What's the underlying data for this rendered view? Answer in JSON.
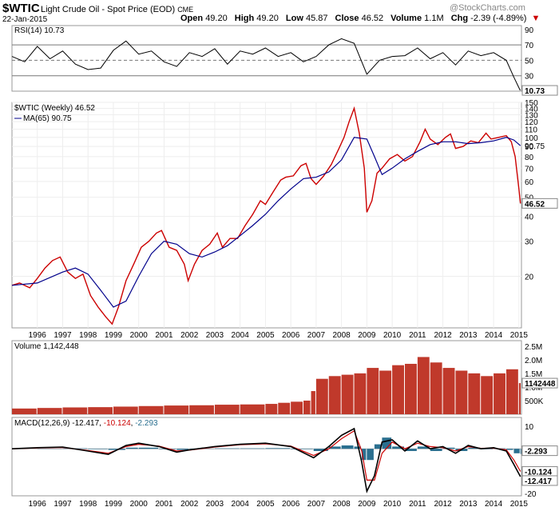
{
  "header": {
    "symbol": "$WTIC",
    "name": "Light Crude Oil - Spot Price (EOD)",
    "exchange": "CME",
    "date": "22-Jan-2015",
    "open_label": "Open",
    "open": "49.20",
    "high_label": "High",
    "high": "49.20",
    "low_label": "Low",
    "low": "45.87",
    "close_label": "Close",
    "close": "46.52",
    "volume_label": "Volume",
    "volume": "1.1M",
    "chg_label": "Chg",
    "chg": "-2.39 (-4.89%)",
    "chg_icon": "down-triangle-icon",
    "watermark": "@StockCharts.com"
  },
  "colors": {
    "price": "#000000",
    "down": "#cc0000",
    "ma": "#00008b",
    "volume": "#c0392b",
    "histogram": "#2a6f8f",
    "signal": "#cc0000"
  },
  "chart_data": [
    {
      "type": "line",
      "panel": "RSI",
      "legend": "RSI(14) 10.73",
      "ylim": [
        10,
        95
      ],
      "yticks": [
        30,
        50,
        70,
        90
      ],
      "reference_lines": [
        30,
        50,
        70
      ],
      "last_value_label": "10.73",
      "x": [
        1995.0,
        1995.5,
        1996.0,
        1996.5,
        1997.0,
        1997.5,
        1998.0,
        1998.5,
        1999.0,
        1999.5,
        2000.0,
        2000.5,
        2001.0,
        2001.5,
        2002.0,
        2002.5,
        2003.0,
        2003.5,
        2004.0,
        2004.5,
        2005.0,
        2005.5,
        2006.0,
        2006.5,
        2007.0,
        2007.5,
        2008.0,
        2008.5,
        2009.0,
        2009.5,
        2010.0,
        2010.5,
        2011.0,
        2011.5,
        2012.0,
        2012.5,
        2013.0,
        2013.5,
        2014.0,
        2014.5,
        2014.8,
        2015.05
      ],
      "values": [
        55,
        48,
        68,
        52,
        62,
        45,
        38,
        40,
        63,
        75,
        58,
        62,
        48,
        42,
        60,
        55,
        65,
        45,
        62,
        58,
        66,
        55,
        60,
        48,
        55,
        70,
        78,
        72,
        32,
        50,
        55,
        56,
        66,
        52,
        60,
        44,
        62,
        56,
        60,
        50,
        28,
        11
      ]
    },
    {
      "type": "line",
      "panel": "price",
      "log_scale": true,
      "series_label": "$WTIC (Weekly) 46.52",
      "ma_label": "MA(65) 90.75",
      "xlim": [
        1995.0,
        2015.1
      ],
      "ylim": [
        11,
        150
      ],
      "yticks": [
        20,
        30,
        40,
        50,
        60,
        70,
        80,
        90,
        100,
        110,
        120,
        130,
        140,
        150
      ],
      "xticks": [
        "1996",
        "1997",
        "1998",
        "1999",
        "2000",
        "2001",
        "2002",
        "2003",
        "2004",
        "2005",
        "2006",
        "2007",
        "2008",
        "2009",
        "2010",
        "2011",
        "2012",
        "2013",
        "2014",
        "2015"
      ],
      "last_price_label": "46.52",
      "last_ma_label": "90.75",
      "series": [
        {
          "name": "$WTIC (Weekly)",
          "x": [
            1995.0,
            1995.3,
            1995.7,
            1996.0,
            1996.3,
            1996.6,
            1996.9,
            1997.2,
            1997.5,
            1997.8,
            1998.1,
            1998.4,
            1998.7,
            1998.95,
            1999.2,
            1999.5,
            1999.8,
            2000.1,
            2000.4,
            2000.7,
            2000.9,
            2001.2,
            2001.5,
            2001.8,
            2001.95,
            2002.2,
            2002.5,
            2002.8,
            2003.1,
            2003.3,
            2003.6,
            2003.9,
            2004.2,
            2004.5,
            2004.8,
            2005.0,
            2005.3,
            2005.6,
            2005.8,
            2006.1,
            2006.4,
            2006.6,
            2006.8,
            2007.0,
            2007.3,
            2007.6,
            2007.9,
            2008.1,
            2008.3,
            2008.5,
            2008.7,
            2008.9,
            2009.0,
            2009.2,
            2009.4,
            2009.6,
            2009.9,
            2010.2,
            2010.5,
            2010.8,
            2011.1,
            2011.3,
            2011.5,
            2011.8,
            2012.1,
            2012.3,
            2012.5,
            2012.8,
            2013.1,
            2013.4,
            2013.7,
            2013.9,
            2014.2,
            2014.5,
            2014.7,
            2014.85,
            2015.0,
            2015.06
          ],
          "values": [
            18,
            18.5,
            17.5,
            19.5,
            22,
            24,
            25,
            21,
            19.5,
            20.5,
            16,
            14,
            12.5,
            11.5,
            14,
            19,
            23,
            28,
            30,
            33,
            34,
            28,
            27,
            23,
            19,
            23,
            27,
            29,
            33,
            28,
            31,
            31,
            36,
            41,
            48,
            46,
            53,
            61,
            63,
            64,
            72,
            74,
            62,
            58,
            64,
            73,
            88,
            100,
            120,
            140,
            105,
            70,
            42,
            48,
            66,
            70,
            78,
            82,
            76,
            80,
            95,
            110,
            98,
            92,
            100,
            104,
            88,
            90,
            96,
            94,
            105,
            98,
            100,
            102,
            95,
            80,
            55,
            46.52
          ]
        },
        {
          "name": "MA(65)",
          "x": [
            1995.0,
            1996.0,
            1997.0,
            1997.5,
            1998.0,
            1998.5,
            1999.0,
            1999.5,
            2000.0,
            2000.5,
            2001.0,
            2001.5,
            2002.0,
            2002.5,
            2003.0,
            2003.5,
            2004.0,
            2004.5,
            2005.0,
            2005.5,
            2006.0,
            2006.5,
            2007.0,
            2007.5,
            2008.0,
            2008.5,
            2009.0,
            2009.3,
            2009.6,
            2010.0,
            2010.5,
            2011.0,
            2011.5,
            2012.0,
            2012.5,
            2013.0,
            2013.5,
            2014.0,
            2014.5,
            2014.8,
            2015.06
          ],
          "values": [
            18,
            18.5,
            21,
            22,
            20.5,
            17,
            14,
            15,
            20,
            26,
            30,
            29,
            26,
            25,
            26.5,
            28.5,
            32,
            36,
            41,
            48,
            55,
            62,
            63,
            67,
            77,
            100,
            98,
            80,
            65,
            70,
            78,
            85,
            92,
            95,
            95,
            93,
            94,
            96,
            100,
            97,
            90.75
          ]
        }
      ]
    },
    {
      "type": "bar",
      "panel": "volume",
      "legend": "Volume 1,142,448",
      "ylim": [
        0,
        2700000
      ],
      "yticks": [
        "500K",
        "1.0M",
        "1.5M",
        "2.0M",
        "2.5M"
      ],
      "last_value_label": "1142448",
      "x": [
        1995.0,
        1996.0,
        1997.0,
        1998.0,
        1999.0,
        2000.0,
        2001.0,
        2002.0,
        2003.0,
        2004.0,
        2005.0,
        2005.5,
        2006.0,
        2006.5,
        2006.8,
        2007.0,
        2007.5,
        2008.0,
        2008.5,
        2009.0,
        2009.5,
        2010.0,
        2010.5,
        2011.0,
        2011.5,
        2012.0,
        2012.5,
        2013.0,
        2013.5,
        2014.0,
        2014.5,
        2015.0
      ],
      "values": [
        210000,
        230000,
        250000,
        260000,
        280000,
        300000,
        320000,
        330000,
        350000,
        360000,
        380000,
        420000,
        460000,
        500000,
        850000,
        1300000,
        1400000,
        1450000,
        1500000,
        1700000,
        1600000,
        1800000,
        1850000,
        2100000,
        1900000,
        1700000,
        1600000,
        1500000,
        1400000,
        1500000,
        1650000,
        1142448
      ]
    },
    {
      "type": "line",
      "panel": "MACD",
      "legend_name": "MACD(12,26,9)",
      "macd_label": "-12.417",
      "signal_label": "-10.124",
      "histogram_label": "-2.293",
      "ylim": [
        -21,
        14
      ],
      "yticks": [
        -20,
        -10,
        0,
        10
      ],
      "last_values": [
        "-2.293",
        "-10.124",
        "-12.417"
      ],
      "x": [
        1995.0,
        1996.0,
        1997.0,
        1998.0,
        1998.8,
        1999.5,
        2000.0,
        2000.8,
        2001.5,
        2002.0,
        2003.0,
        2004.0,
        2005.0,
        2006.0,
        2006.9,
        2007.5,
        2008.0,
        2008.5,
        2008.8,
        2009.0,
        2009.3,
        2009.6,
        2010.0,
        2010.5,
        2011.0,
        2011.5,
        2012.0,
        2012.5,
        2013.0,
        2013.5,
        2014.0,
        2014.5,
        2014.8,
        2015.06
      ],
      "series": [
        {
          "name": "MACD",
          "values": [
            0,
            0.5,
            0.8,
            -1,
            -2.5,
            1.5,
            2.5,
            1,
            -1.5,
            -0.5,
            1,
            2,
            2.5,
            1,
            -4,
            1,
            6,
            9,
            -6,
            -19,
            -12,
            3,
            4,
            -1,
            3.5,
            0,
            1,
            -2,
            1.5,
            0,
            0.5,
            -1,
            -7,
            -12.417
          ]
        },
        {
          "name": "Signal",
          "values": [
            0,
            0.4,
            0.6,
            -0.8,
            -2,
            1,
            2,
            1.2,
            -1,
            -0.6,
            0.8,
            1.8,
            2.2,
            1.2,
            -3,
            0,
            4.5,
            8,
            -1,
            -14,
            -14,
            -2,
            3,
            0,
            2.5,
            1,
            0.5,
            -1,
            1,
            0.2,
            0.3,
            -0.5,
            -5,
            -10.124
          ]
        },
        {
          "name": "Histogram",
          "values": [
            0,
            0.1,
            0.2,
            -0.2,
            -0.5,
            0.5,
            0.5,
            -0.2,
            -0.5,
            0.1,
            0.2,
            0.2,
            0.3,
            -0.2,
            -1,
            1,
            1.5,
            1,
            -5,
            -5,
            2,
            5,
            1,
            -1,
            1,
            -1,
            0.5,
            -1,
            0.5,
            -0.2,
            0.2,
            -0.5,
            -2,
            -2.293
          ]
        }
      ]
    }
  ]
}
